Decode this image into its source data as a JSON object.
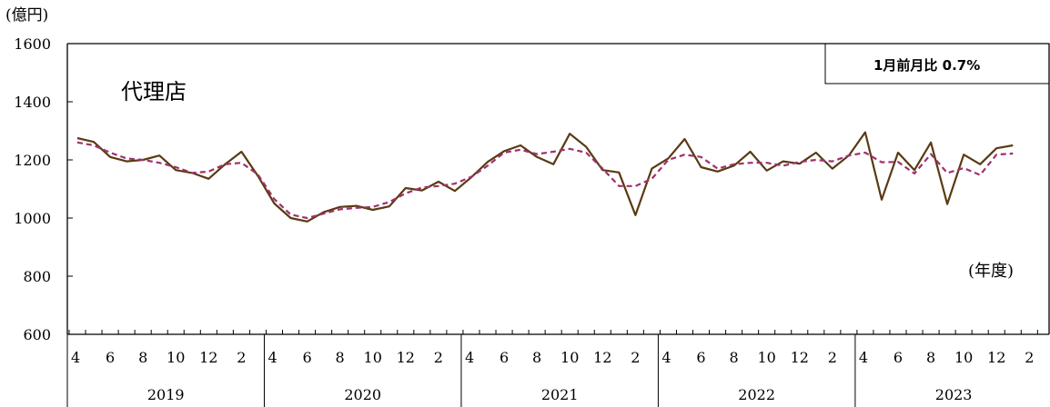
{
  "chart_data": {
    "type": "line",
    "title": "代理店",
    "ylabel": "(億円)",
    "xlabel": "(年度)",
    "note": "1月前月比  0.7%",
    "ylim": [
      600,
      1600
    ],
    "yticks": [
      600,
      800,
      1000,
      1200,
      1400,
      1600
    ],
    "month_tick_labels": [
      "4",
      "6",
      "8",
      "10",
      "12",
      "2"
    ],
    "years": [
      "2019",
      "2020",
      "2021",
      "2022",
      "2023"
    ],
    "x_label": "month index from April 2019",
    "series": [
      {
        "style": "solid",
        "color": "#5a3a12",
        "values": [
          1275,
          1262,
          1210,
          1195,
          1200,
          1215,
          1165,
          1155,
          1135,
          1185,
          1228,
          1145,
          1050,
          1000,
          988,
          1020,
          1038,
          1042,
          1028,
          1040,
          1103,
          1095,
          1125,
          1093,
          1140,
          1193,
          1230,
          1250,
          1210,
          1185,
          1290,
          1245,
          1165,
          1157,
          1010,
          1170,
          1205,
          1272,
          1175,
          1160,
          1180,
          1228,
          1163,
          1195,
          1187,
          1225,
          1170,
          1215,
          1295,
          1063,
          1225,
          1165,
          1260,
          1048,
          1218,
          1185,
          1240,
          1250
        ]
      },
      {
        "style": "dashed",
        "color": "#a0306e",
        "values": [
          1260,
          1250,
          1225,
          1205,
          1200,
          1190,
          1175,
          1155,
          1160,
          1185,
          1190,
          1150,
          1065,
          1012,
          1000,
          1015,
          1030,
          1035,
          1038,
          1055,
          1085,
          1105,
          1110,
          1118,
          1142,
          1180,
          1225,
          1235,
          1220,
          1228,
          1238,
          1225,
          1170,
          1110,
          1110,
          1135,
          1200,
          1218,
          1210,
          1170,
          1185,
          1190,
          1190,
          1180,
          1193,
          1200,
          1195,
          1215,
          1225,
          1192,
          1193,
          1153,
          1220,
          1155,
          1172,
          1148,
          1218,
          1222
        ]
      }
    ]
  }
}
